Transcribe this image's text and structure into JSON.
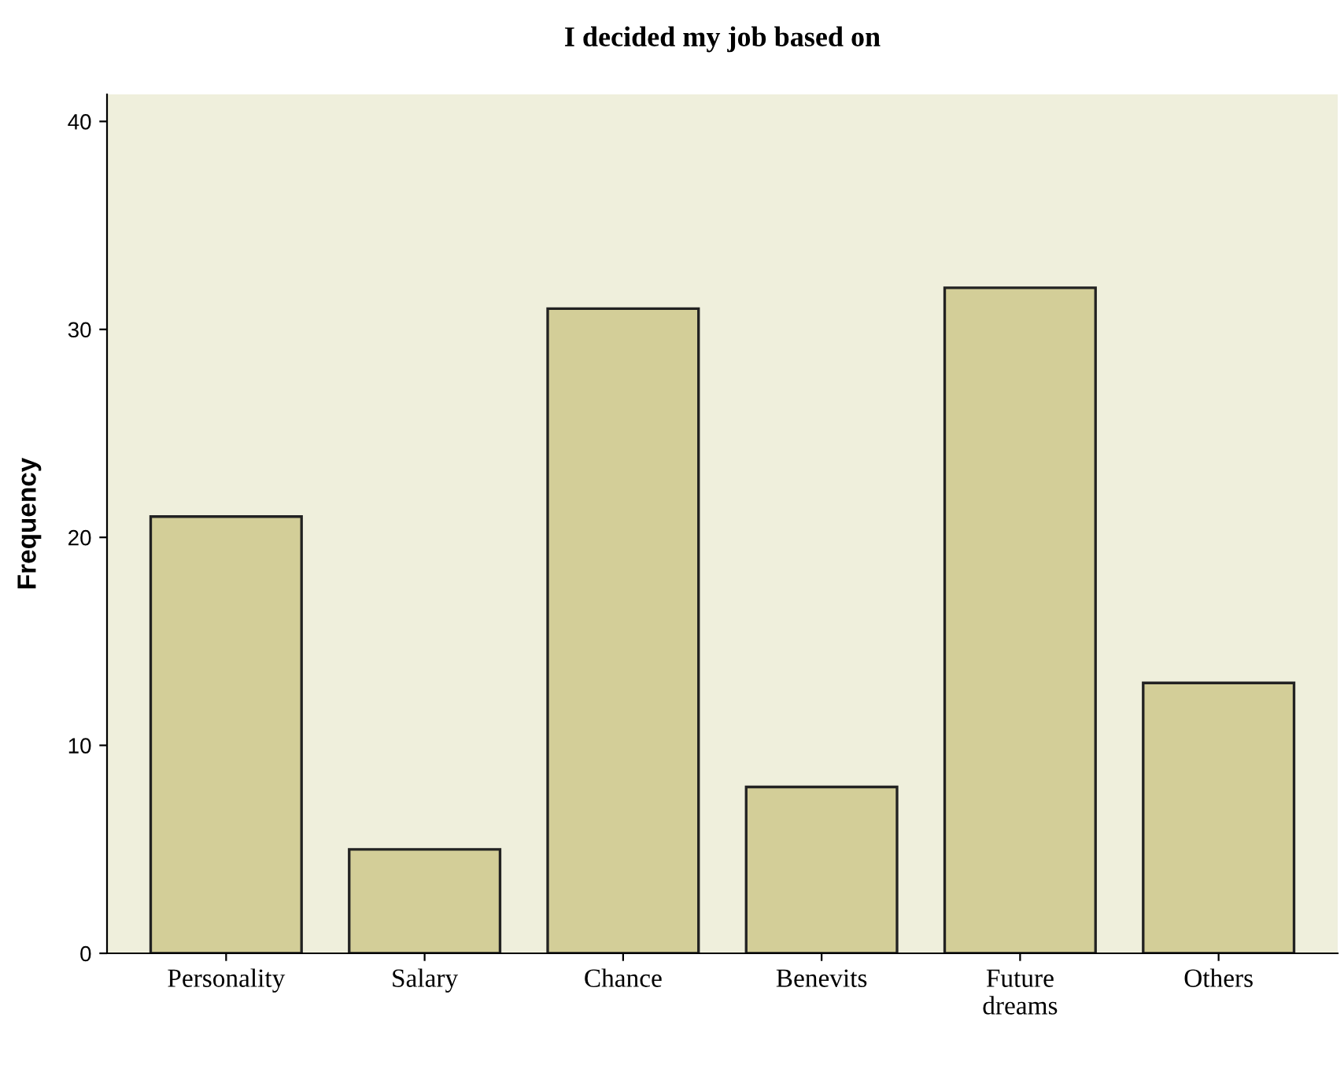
{
  "chart_data": {
    "type": "bar",
    "title": "I decided my job based on",
    "ylabel": "Frequency",
    "categories": [
      "Personality",
      "Salary",
      "Chance",
      "Benevits",
      "Future\ndreams",
      "Others"
    ],
    "values": [
      21,
      5,
      31,
      8,
      32,
      13
    ],
    "color": "#d3ce98",
    "ylim": [
      0,
      41.3
    ],
    "yticks": [
      0,
      10,
      20,
      30,
      40
    ],
    "grid": false,
    "legend": false
  }
}
